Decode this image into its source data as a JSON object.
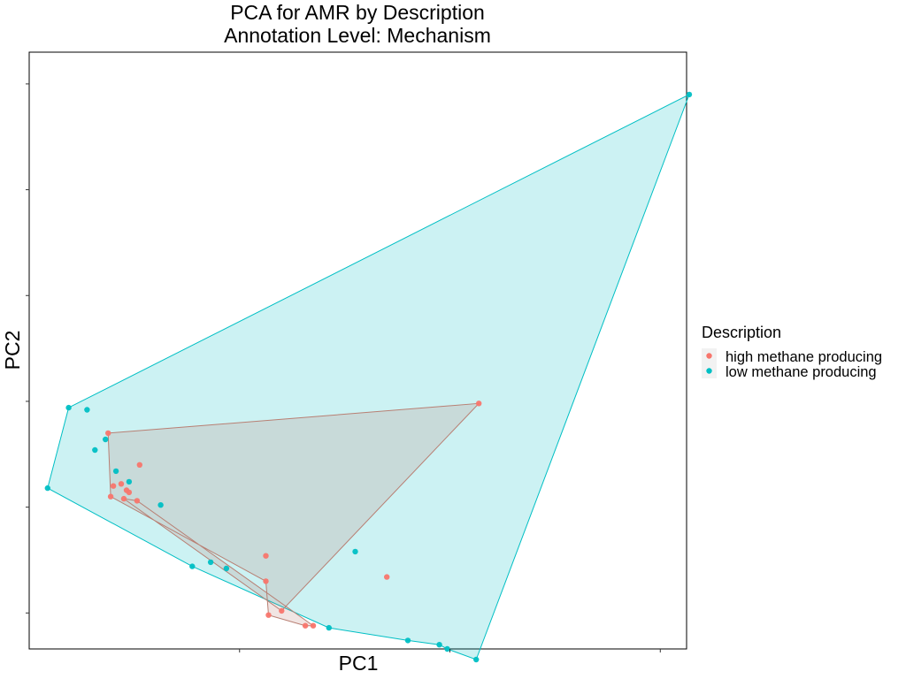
{
  "chart_data": {
    "type": "scatter",
    "title": "PCA for AMR by Description",
    "subtitle": "Annotation Level: Mechanism",
    "xlabel": "PC1",
    "ylabel": "PC2",
    "xlim": [
      -0.2,
      2.3
    ],
    "ylim": [
      -1.17,
      1.65
    ],
    "x_ticks": [
      0.6,
      1.4,
      2.2
    ],
    "y_ticks": [
      -1.0,
      -0.5,
      0.0,
      0.5,
      1.0,
      1.5
    ],
    "tick_labels_shown": false,
    "grid": false,
    "legend": {
      "title": "Description",
      "position": "right"
    },
    "hull": true,
    "series": [
      {
        "name": "high methane producing",
        "color": "#F8766D",
        "hull_color": "#b87f73",
        "points": [
          [
            0.1,
            -0.15
          ],
          [
            0.22,
            -0.3
          ],
          [
            0.12,
            -0.4
          ],
          [
            0.11,
            -0.45
          ],
          [
            0.17,
            -0.42
          ],
          [
            0.18,
            -0.43
          ],
          [
            0.15,
            -0.39
          ],
          [
            0.21,
            -0.47
          ],
          [
            0.16,
            -0.46
          ],
          [
            0.7,
            -0.73
          ],
          [
            0.7,
            -0.85
          ],
          [
            1.16,
            -0.83
          ],
          [
            0.76,
            -0.99
          ],
          [
            0.71,
            -1.01
          ],
          [
            0.85,
            -1.06
          ],
          [
            0.88,
            -1.06
          ],
          [
            1.51,
            -0.01
          ]
        ],
        "hull_order": [
          0,
          16,
          12,
          8,
          7,
          15,
          14,
          13,
          10,
          3
        ]
      },
      {
        "name": "low methane producing",
        "color": "#00BFC4",
        "hull_color": "#00BFC4",
        "points": [
          [
            -0.05,
            -0.03
          ],
          [
            0.02,
            -0.04
          ],
          [
            0.05,
            -0.23
          ],
          [
            0.09,
            -0.18
          ],
          [
            0.13,
            -0.33
          ],
          [
            0.18,
            -0.38
          ],
          [
            -0.13,
            -0.41
          ],
          [
            0.3,
            -0.49
          ],
          [
            0.42,
            -0.78
          ],
          [
            0.49,
            -0.76
          ],
          [
            0.55,
            -0.79
          ],
          [
            1.04,
            -0.71
          ],
          [
            0.94,
            -1.07
          ],
          [
            1.24,
            -1.13
          ],
          [
            1.36,
            -1.15
          ],
          [
            1.39,
            -1.17
          ],
          [
            1.5,
            -1.22
          ],
          [
            2.31,
            1.45
          ]
        ],
        "hull_order": [
          0,
          17,
          16,
          15,
          14,
          13,
          12,
          8,
          6
        ]
      }
    ]
  }
}
